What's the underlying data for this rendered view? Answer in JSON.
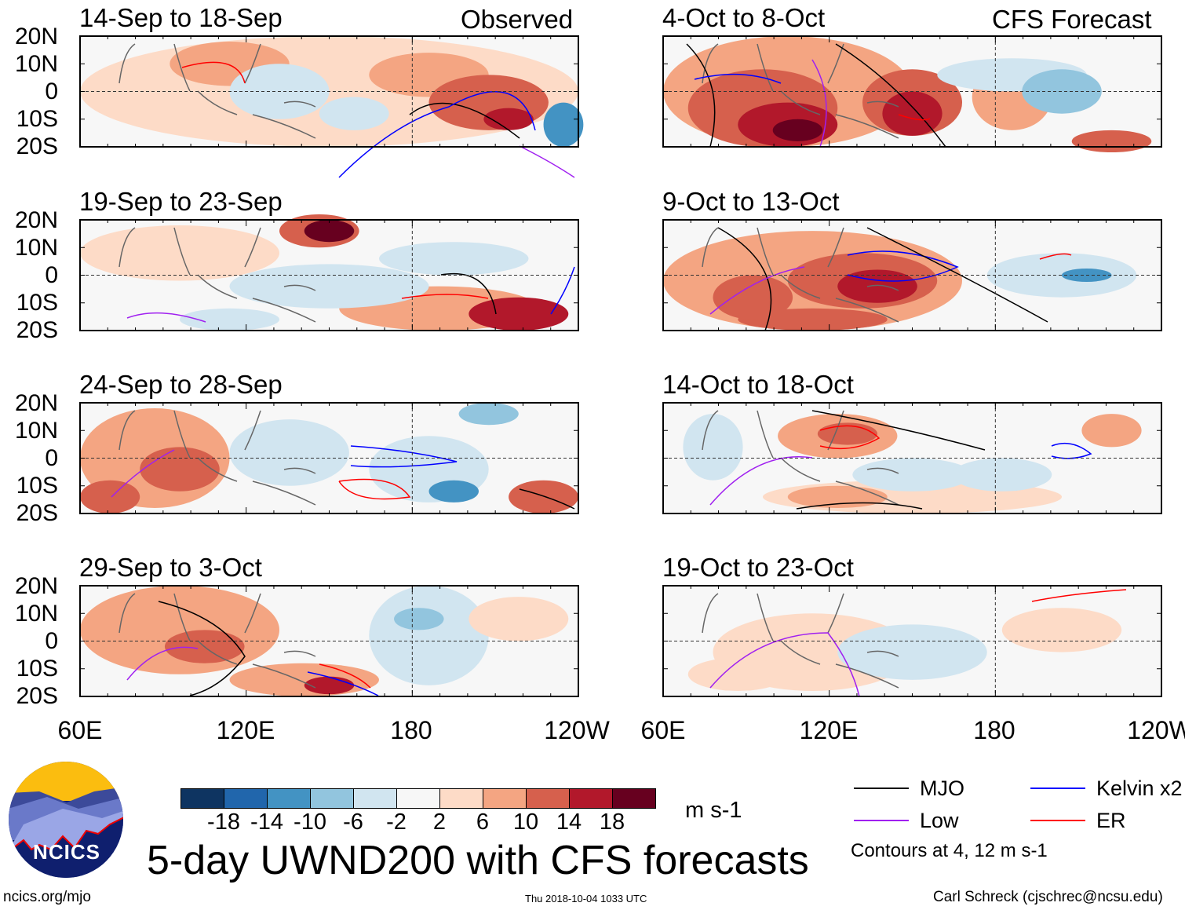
{
  "figure": {
    "title": "5-day UWND200 with CFS forecasts",
    "left_header": "Observed",
    "right_header": "CFS Forecast",
    "site": "ncics.org/mjo",
    "timestamp": "Thu 2018-10-04 1033 UTC",
    "author": "Carl Schreck (cjschrec@ncsu.edu)",
    "logo_text": "NCICS"
  },
  "panels": [
    {
      "title": "14-Sep to 18-Sep",
      "kind": "observed"
    },
    {
      "title": "19-Sep to 23-Sep",
      "kind": "observed"
    },
    {
      "title": "24-Sep to 28-Sep",
      "kind": "observed"
    },
    {
      "title": "29-Sep to 3-Oct",
      "kind": "observed"
    },
    {
      "title": "4-Oct to 8-Oct",
      "kind": "forecast"
    },
    {
      "title": "9-Oct to 13-Oct",
      "kind": "forecast"
    },
    {
      "title": "14-Oct to 18-Oct",
      "kind": "forecast"
    },
    {
      "title": "19-Oct to 23-Oct",
      "kind": "forecast"
    }
  ],
  "axes": {
    "lat_labels": [
      "20N",
      "10N",
      "0",
      "10S",
      "20S"
    ],
    "lon_labels": [
      "60E",
      "120E",
      "180",
      "120W"
    ]
  },
  "colorbar": {
    "unit": "m s-1",
    "labels": [
      "-18",
      "-14",
      "-10",
      "-6",
      "-2",
      "2",
      "6",
      "10",
      "14",
      "18"
    ],
    "colors": [
      "#0e3461",
      "#2166ac",
      "#4393c3",
      "#92c5de",
      "#d1e5f0",
      "#f7f7f7",
      "#fddbc7",
      "#f4a582",
      "#d6604d",
      "#b2182b",
      "#67001f"
    ]
  },
  "legend": {
    "items": [
      {
        "label": "MJO",
        "color": "#000000"
      },
      {
        "label": "Kelvin x2",
        "color": "#0000ff"
      },
      {
        "label": "Low",
        "color": "#a020f0"
      },
      {
        "label": "ER",
        "color": "#ff0000"
      }
    ],
    "note": "Contours at 4, 12 m s-1"
  }
}
